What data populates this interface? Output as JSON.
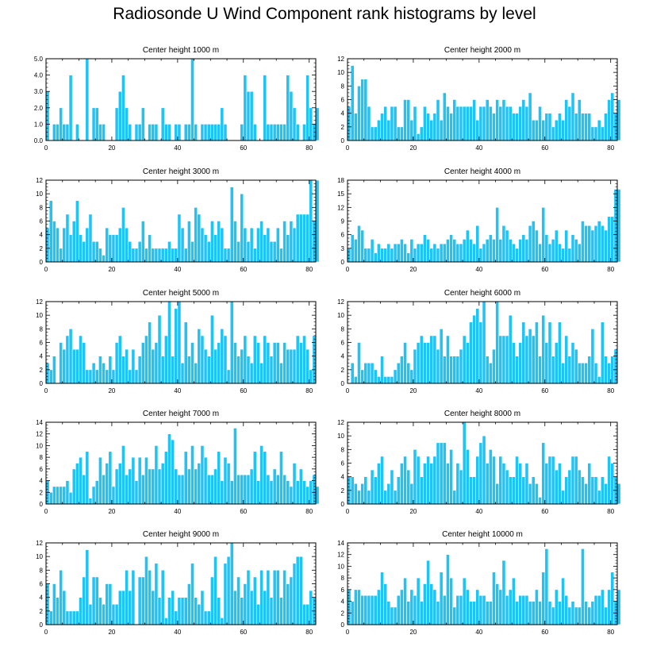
{
  "title": "Radiosonde U Wind Component rank histograms by level",
  "colors": {
    "bar": "#1fc3f5",
    "bar_edge": "#ffffff",
    "axis": "#000000"
  },
  "chart_data": [
    {
      "type": "bar",
      "title": "Center height 1000 m",
      "xlim": [
        0,
        82
      ],
      "ylim": [
        0,
        5
      ],
      "xticks": [
        0,
        20,
        40,
        60,
        80
      ],
      "yticks": [
        0.0,
        1.0,
        2.0,
        3.0,
        4.0,
        5.0
      ],
      "ytick_labels": [
        "0.0",
        "1.0",
        "2.0",
        "3.0",
        "4.0",
        "5.0"
      ],
      "values": [
        3,
        0,
        1,
        1,
        2,
        1,
        1,
        4,
        0,
        1,
        0,
        0,
        5,
        0,
        2,
        2,
        1,
        1,
        0,
        0,
        0,
        2,
        3,
        4,
        2,
        1,
        0,
        1,
        1,
        2,
        0,
        1,
        1,
        1,
        0,
        2,
        1,
        1,
        0,
        1,
        1,
        0,
        1,
        1,
        5,
        1,
        0,
        1,
        1,
        1,
        1,
        1,
        1,
        2,
        1,
        0,
        0,
        0,
        0,
        1,
        4,
        3,
        3,
        1,
        0,
        0,
        4,
        1,
        1,
        1,
        1,
        1,
        1,
        4,
        3,
        2,
        1,
        0,
        1,
        4,
        2,
        1,
        2
      ]
    },
    {
      "type": "bar",
      "title": "Center height 2000 m",
      "xlim": [
        0,
        82
      ],
      "ylim": [
        0,
        12
      ],
      "xticks": [
        0,
        20,
        40,
        60,
        80
      ],
      "yticks": [
        0,
        2,
        4,
        6,
        8,
        10,
        12
      ],
      "ytick_labels": [
        "0",
        "2",
        "4",
        "6",
        "8",
        "10",
        "12"
      ],
      "values": [
        5,
        11,
        4,
        8,
        9,
        9,
        5,
        2,
        2,
        3,
        4,
        5,
        3,
        5,
        5,
        2,
        2,
        6,
        6,
        3,
        5,
        1,
        2,
        5,
        4,
        3,
        4,
        6,
        3,
        7,
        5,
        4,
        6,
        5,
        5,
        5,
        5,
        5,
        6,
        3,
        5,
        5,
        6,
        5,
        4,
        6,
        5,
        6,
        5,
        5,
        4,
        4,
        5,
        6,
        5,
        7,
        3,
        3,
        5,
        3,
        4,
        4,
        2,
        3,
        4,
        3,
        6,
        5,
        7,
        4,
        6,
        4,
        4,
        4,
        2,
        2,
        3,
        2,
        4,
        6,
        7,
        4,
        6
      ]
    },
    {
      "type": "bar",
      "title": "Center height 3000 m",
      "xlim": [
        0,
        82
      ],
      "ylim": [
        0,
        12
      ],
      "xticks": [
        0,
        20,
        40,
        60,
        80
      ],
      "yticks": [
        0,
        2,
        4,
        6,
        8,
        10,
        12
      ],
      "ytick_labels": [
        "0",
        "2",
        "4",
        "6",
        "8",
        "10",
        "12"
      ],
      "values": [
        5,
        9,
        6,
        5,
        2,
        5,
        7,
        4,
        6,
        9,
        4,
        3,
        5,
        7,
        3,
        3,
        2,
        1,
        5,
        4,
        4,
        4,
        5,
        8,
        5,
        3,
        2,
        2,
        3,
        6,
        2,
        4,
        2,
        2,
        2,
        2,
        2,
        3,
        2,
        2,
        7,
        5,
        2,
        6,
        3,
        8,
        7,
        5,
        4,
        3,
        6,
        4,
        6,
        5,
        2,
        2,
        11,
        6,
        3,
        10,
        5,
        3,
        5,
        2,
        5,
        6,
        4,
        5,
        3,
        3,
        5,
        2,
        6,
        4,
        6,
        5,
        7,
        7,
        7,
        7,
        12,
        6,
        12
      ]
    },
    {
      "type": "bar",
      "title": "Center height 4000 m",
      "xlim": [
        0,
        82
      ],
      "ylim": [
        0,
        18
      ],
      "xticks": [
        0,
        20,
        40,
        60,
        80
      ],
      "yticks": [
        0,
        3,
        6,
        9,
        12,
        15,
        18
      ],
      "ytick_labels": [
        "0",
        "3",
        "6",
        "9",
        "12",
        "15",
        "18"
      ],
      "values": [
        3,
        6,
        5,
        8,
        7,
        3,
        3,
        5,
        2,
        4,
        3,
        3,
        4,
        3,
        4,
        4,
        5,
        4,
        2,
        5,
        3,
        4,
        4,
        6,
        5,
        3,
        4,
        3,
        4,
        4,
        5,
        6,
        5,
        4,
        4,
        5,
        7,
        5,
        4,
        8,
        3,
        4,
        5,
        6,
        5,
        12,
        5,
        8,
        7,
        5,
        4,
        3,
        5,
        6,
        5,
        8,
        9,
        7,
        4,
        12,
        6,
        4,
        5,
        7,
        4,
        3,
        7,
        3,
        6,
        5,
        4,
        9,
        8,
        8,
        7,
        8,
        9,
        8,
        7,
        10,
        10,
        16,
        16
      ]
    },
    {
      "type": "bar",
      "title": "Center height 5000 m",
      "xlim": [
        0,
        82
      ],
      "ylim": [
        0,
        12
      ],
      "xticks": [
        0,
        20,
        40,
        60,
        80
      ],
      "yticks": [
        0,
        2,
        4,
        6,
        8,
        10,
        12
      ],
      "ytick_labels": [
        "0",
        "2",
        "4",
        "6",
        "8",
        "10",
        "12"
      ],
      "values": [
        3,
        2,
        4,
        0,
        6,
        5,
        7,
        8,
        5,
        5,
        7,
        6,
        2,
        2,
        3,
        2,
        4,
        3,
        2,
        4,
        2,
        6,
        7,
        4,
        5,
        2,
        5,
        2,
        4,
        6,
        7,
        9,
        5,
        6,
        10,
        4,
        7,
        12,
        4,
        11,
        12,
        3,
        9,
        4,
        6,
        3,
        8,
        7,
        5,
        4,
        10,
        5,
        6,
        8,
        7,
        2,
        12,
        6,
        4,
        5,
        7,
        4,
        3,
        7,
        6,
        3,
        7,
        6,
        4,
        6,
        6,
        3,
        6,
        5,
        5,
        5,
        7,
        6,
        7,
        5,
        2,
        7
      ]
    },
    {
      "type": "bar",
      "title": "Center height 6000 m",
      "xlim": [
        0,
        82
      ],
      "ylim": [
        0,
        12
      ],
      "xticks": [
        0,
        20,
        40,
        60,
        80
      ],
      "yticks": [
        0,
        2,
        4,
        6,
        8,
        10,
        12
      ],
      "ytick_labels": [
        "0",
        "2",
        "4",
        "6",
        "8",
        "10",
        "12"
      ],
      "values": [
        0,
        3,
        1,
        6,
        2,
        3,
        3,
        3,
        2,
        1,
        4,
        1,
        1,
        1,
        2,
        3,
        4,
        6,
        3,
        2,
        5,
        6,
        7,
        6,
        6,
        7,
        7,
        5,
        8,
        4,
        7,
        4,
        4,
        4,
        5,
        7,
        6,
        9,
        10,
        11,
        9,
        12,
        4,
        3,
        5,
        12,
        7,
        7,
        7,
        10,
        6,
        4,
        6,
        9,
        7,
        8,
        7,
        9,
        4,
        10,
        6,
        9,
        4,
        6,
        9,
        3,
        7,
        4,
        6,
        5,
        3,
        3,
        3,
        4,
        8,
        3,
        1,
        9,
        4,
        3,
        4,
        5
      ]
    },
    {
      "type": "bar",
      "title": "Center height 7000 m",
      "xlim": [
        0,
        82
      ],
      "ylim": [
        0,
        14
      ],
      "xticks": [
        0,
        20,
        40,
        60,
        80
      ],
      "yticks": [
        0,
        2,
        4,
        6,
        8,
        10,
        12,
        14
      ],
      "ytick_labels": [
        "0",
        "2",
        "4",
        "6",
        "8",
        "10",
        "12",
        "14"
      ],
      "values": [
        4,
        2,
        3,
        3,
        3,
        3,
        4,
        2,
        6,
        7,
        8,
        5,
        9,
        1,
        3,
        4,
        8,
        5,
        7,
        9,
        3,
        6,
        7,
        10,
        5,
        6,
        8,
        4,
        8,
        5,
        8,
        6,
        6,
        10,
        6,
        7,
        9,
        12,
        11,
        6,
        5,
        5,
        9,
        6,
        10,
        6,
        7,
        10,
        8,
        5,
        5,
        6,
        9,
        4,
        8,
        7,
        4,
        13,
        5,
        5,
        5,
        5,
        6,
        9,
        4,
        10,
        9,
        5,
        4,
        6,
        5,
        9,
        5,
        4,
        3,
        7,
        4,
        6,
        4,
        3,
        4,
        5,
        3
      ]
    },
    {
      "type": "bar",
      "title": "Center height 8000 m",
      "xlim": [
        0,
        82
      ],
      "ylim": [
        0,
        12
      ],
      "xticks": [
        0,
        20,
        40,
        60,
        80
      ],
      "yticks": [
        0,
        2,
        4,
        6,
        8,
        10,
        12
      ],
      "ytick_labels": [
        "0",
        "2",
        "4",
        "6",
        "8",
        "10",
        "12"
      ],
      "values": [
        4,
        4,
        3,
        2,
        3,
        4,
        2,
        5,
        4,
        6,
        7,
        2,
        3,
        5,
        2,
        4,
        6,
        7,
        5,
        3,
        8,
        7,
        4,
        6,
        7,
        6,
        7,
        9,
        9,
        9,
        6,
        8,
        2,
        6,
        5,
        12,
        8,
        4,
        4,
        7,
        9,
        10,
        6,
        8,
        7,
        3,
        7,
        6,
        5,
        4,
        4,
        7,
        6,
        4,
        6,
        3,
        4,
        3,
        1,
        9,
        6,
        7,
        7,
        5,
        6,
        2,
        4,
        5,
        7,
        7,
        5,
        4,
        3,
        6,
        4,
        4,
        2,
        4,
        3,
        7,
        6,
        4,
        3
      ]
    },
    {
      "type": "bar",
      "title": "Center height 9000 m",
      "xlim": [
        0,
        82
      ],
      "ylim": [
        0,
        12
      ],
      "xticks": [
        0,
        20,
        40,
        60,
        80
      ],
      "yticks": [
        0,
        2,
        4,
        6,
        8,
        10,
        12
      ],
      "ytick_labels": [
        "0",
        "2",
        "4",
        "6",
        "8",
        "10",
        "12"
      ],
      "values": [
        6,
        2,
        6,
        4,
        8,
        5,
        2,
        2,
        2,
        2,
        4,
        7,
        11,
        3,
        7,
        7,
        4,
        3,
        6,
        6,
        3,
        3,
        5,
        5,
        8,
        5,
        8,
        0,
        7,
        7,
        10,
        8,
        5,
        9,
        4,
        8,
        1,
        4,
        5,
        2,
        4,
        4,
        4,
        6,
        9,
        4,
        3,
        5,
        2,
        2,
        7,
        10,
        4,
        1,
        9,
        10,
        12,
        5,
        7,
        4,
        6,
        8,
        5,
        7,
        3,
        8,
        5,
        8,
        4,
        8,
        8,
        4,
        8,
        6,
        7,
        9,
        10,
        10,
        3,
        3,
        5,
        4
      ]
    },
    {
      "type": "bar",
      "title": "Center height 10000 m",
      "xlim": [
        0,
        82
      ],
      "ylim": [
        0,
        14
      ],
      "xticks": [
        0,
        20,
        40,
        60,
        80
      ],
      "yticks": [
        0,
        2,
        4,
        6,
        8,
        10,
        12,
        14
      ],
      "ytick_labels": [
        "0",
        "2",
        "4",
        "6",
        "8",
        "10",
        "12",
        "14"
      ],
      "values": [
        6,
        4,
        6,
        6,
        5,
        5,
        5,
        5,
        5,
        6,
        9,
        7,
        4,
        3,
        3,
        5,
        6,
        8,
        4,
        6,
        5,
        8,
        4,
        7,
        11,
        7,
        6,
        4,
        9,
        5,
        12,
        8,
        3,
        5,
        5,
        8,
        6,
        4,
        4,
        6,
        5,
        5,
        4,
        4,
        9,
        7,
        6,
        11,
        5,
        6,
        8,
        4,
        5,
        5,
        5,
        4,
        4,
        6,
        4,
        9,
        13,
        4,
        3,
        6,
        4,
        8,
        5,
        3,
        4,
        3,
        3,
        13,
        4,
        3,
        4,
        5,
        5,
        6,
        3,
        6,
        9,
        4,
        6
      ]
    }
  ]
}
